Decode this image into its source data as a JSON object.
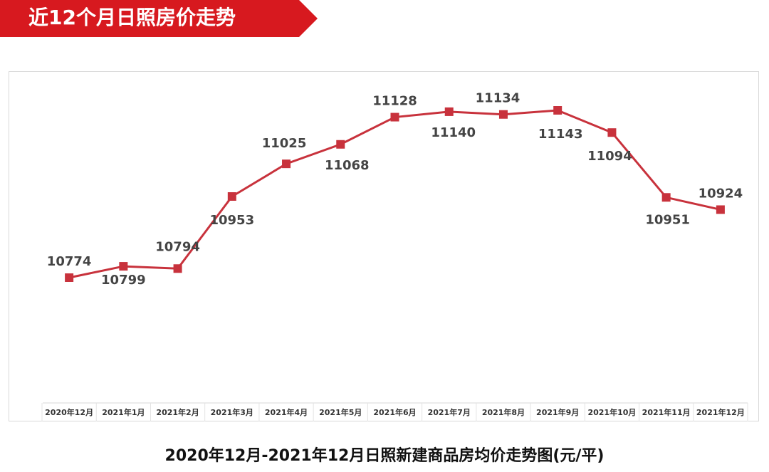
{
  "header": {
    "title": "近12个月日照房价走势"
  },
  "chart_data": {
    "type": "line",
    "caption": "2020年12月-2021年12月日照新建商品房均价走势图(元/平)",
    "categories": [
      "2020年12月",
      "2021年1月",
      "2021年2月",
      "2021年3月",
      "2021年4月",
      "2021年5月",
      "2021年6月",
      "2021年7月",
      "2021年8月",
      "2021年9月",
      "2021年10月",
      "2021年11月",
      "2021年12月"
    ],
    "series": [
      {
        "color": "#c8323c",
        "values": [
          10774,
          10799,
          10794,
          10953,
          11025,
          11068,
          11128,
          11140,
          11134,
          11143,
          11094,
          10951,
          10924
        ]
      }
    ]
  }
}
